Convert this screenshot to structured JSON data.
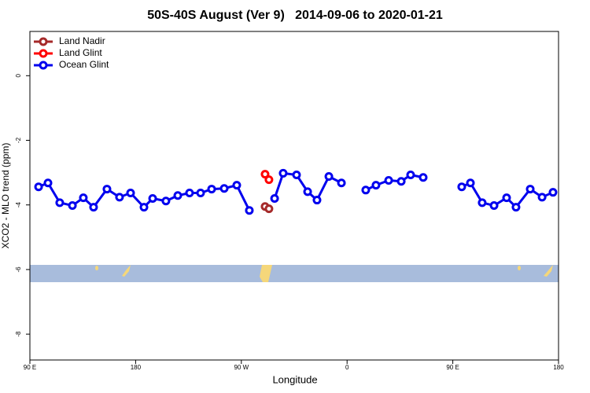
{
  "chart_data": {
    "type": "line",
    "title": "50S-40S August (Ver 9)   2014-09-06 to 2020-01-21",
    "xlabel": "Longitude",
    "ylabel": "XCO2 - MLO trend (ppm)",
    "xlim": [
      90,
      540
    ],
    "ylim": [
      -8.8,
      1.37
    ],
    "xticks": [
      {
        "value": 90,
        "label": "90 E"
      },
      180,
      {
        "value": 270,
        "label": "90 W"
      },
      {
        "value": 360,
        "label": "0"
      },
      {
        "value": 450,
        "label": "90 E"
      },
      {
        "value": 540,
        "label": "180"
      }
    ],
    "yticks": [
      0,
      -2,
      -4,
      -6,
      -8
    ],
    "legend": "top-left",
    "series": [
      {
        "name": "Land Nadir",
        "color": "#a52a2a",
        "x": [
          290.2,
          293.5
        ],
        "values": [
          -4.05,
          -4.12
        ]
      },
      {
        "name": "Land Glint",
        "color": "#ff0000",
        "x": [
          290.2,
          293.5
        ],
        "values": [
          -3.05,
          -3.22
        ]
      },
      {
        "name": "Ocean Glint",
        "color": "#0000ee",
        "x": [
          97.4,
          105.4,
          115.4,
          126.2,
          135.5,
          144.2,
          155.6,
          166.3,
          175.7,
          187.1,
          194.5,
          205.8,
          215.9,
          225.9,
          235.3,
          244.7,
          255.4,
          266.1,
          276.8,
          287,
          298.3,
          305.6,
          317,
          326.4,
          334.4,
          344.5,
          355.2,
          366,
          375.9,
          384.6,
          395.4,
          406.1,
          414.1,
          424.8,
          440,
          457.6,
          465,
          475,
          485.1,
          495.8,
          503.8,
          515.9,
          526,
          535.3
        ],
        "values": [
          -3.44,
          -3.32,
          -3.93,
          -4.02,
          -3.78,
          -4.07,
          -3.51,
          -3.76,
          -3.63,
          -4.07,
          -3.8,
          -3.88,
          -3.71,
          -3.63,
          -3.63,
          -3.51,
          -3.49,
          -3.39,
          -4.17,
          null,
          -3.8,
          -3.02,
          -3.07,
          -3.59,
          -3.85,
          -3.12,
          -3.32,
          null,
          -3.54,
          -3.39,
          -3.24,
          -3.27,
          -3.07,
          -3.15,
          null,
          -3.44,
          -3.32,
          -3.93,
          -4.02,
          -3.78,
          -4.07,
          -3.51,
          -3.76,
          -3.61
        ]
      }
    ]
  }
}
